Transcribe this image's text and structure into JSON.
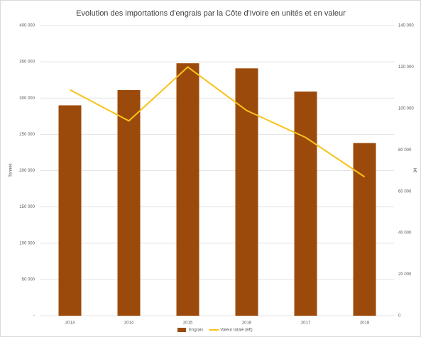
{
  "chart_data": {
    "type": "bar",
    "title": "Evolution des importations d'engrais par la Côte d'Ivoire en unités et en valeur",
    "y_label": "Tonnes",
    "y2_label": "k€",
    "categories": [
      "2013",
      "2014",
      "2015",
      "2016",
      "2017",
      "2018"
    ],
    "series": [
      {
        "name": "Engrais",
        "type": "bar",
        "color": "#9c4a0c",
        "values": [
          290000,
          311000,
          348000,
          341000,
          309000,
          238000
        ]
      },
      {
        "name": "Valeur totale (k€)",
        "type": "line",
        "axis": "y2",
        "color": "#f7c31a",
        "values": [
          109000,
          94000,
          120000,
          99000,
          86000,
          67000
        ]
      }
    ],
    "ylim": [
      0,
      400000
    ],
    "yticks": [
      {
        "value": 0,
        "label": "-"
      },
      {
        "value": 50000,
        "label": "50 000"
      },
      {
        "value": 100000,
        "label": "100 000"
      },
      {
        "value": 150000,
        "label": "150 000"
      },
      {
        "value": 200000,
        "label": "200 000"
      },
      {
        "value": 250000,
        "label": "250 000"
      },
      {
        "value": 300000,
        "label": "300 000"
      },
      {
        "value": 350000,
        "label": "350 000"
      },
      {
        "value": 400000,
        "label": "400 000"
      }
    ],
    "y2lim": [
      0,
      140000
    ],
    "y2ticks": [
      0,
      {
        "value": 20000,
        "label": "20 000"
      },
      {
        "value": 40000,
        "label": "40 000"
      },
      {
        "value": 60000,
        "label": "60 000"
      },
      {
        "value": 80000,
        "label": "80 000"
      },
      {
        "value": 100000,
        "label": "100 000"
      },
      {
        "value": 120000,
        "label": "120 000"
      },
      {
        "value": 140000,
        "label": "140 000"
      }
    ],
    "grid": true,
    "legend": "bottom"
  }
}
